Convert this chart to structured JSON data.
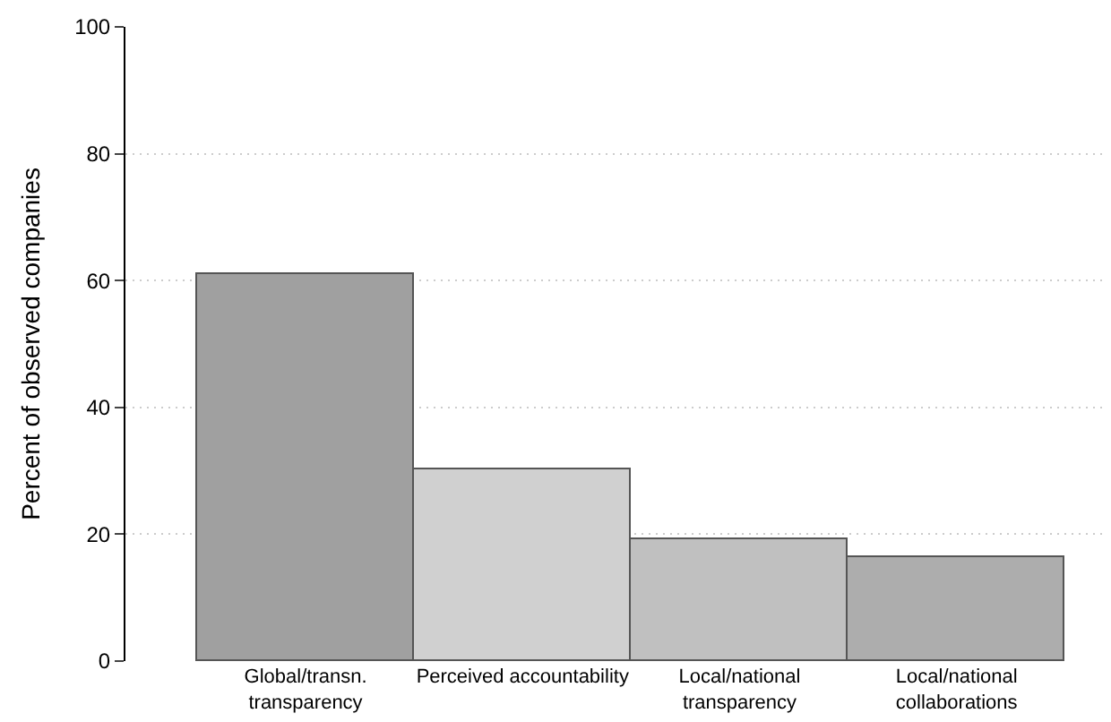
{
  "chart_data": {
    "type": "bar",
    "ylabel": "Percent of observed companies",
    "categories": [
      "Global/transn.\ntransparency",
      "Perceived accountability",
      "Local/national\ntransparency",
      "Local/national\ncollaborations"
    ],
    "values": [
      61,
      30.3,
      19.2,
      16.4
    ],
    "colors": [
      "#a0a0a0",
      "#d0d0d0",
      "#c0c0c0",
      "#adadad"
    ],
    "ylim": [
      0,
      100
    ],
    "yticks": [
      0,
      20,
      40,
      60,
      80,
      100
    ],
    "grid": "y"
  }
}
